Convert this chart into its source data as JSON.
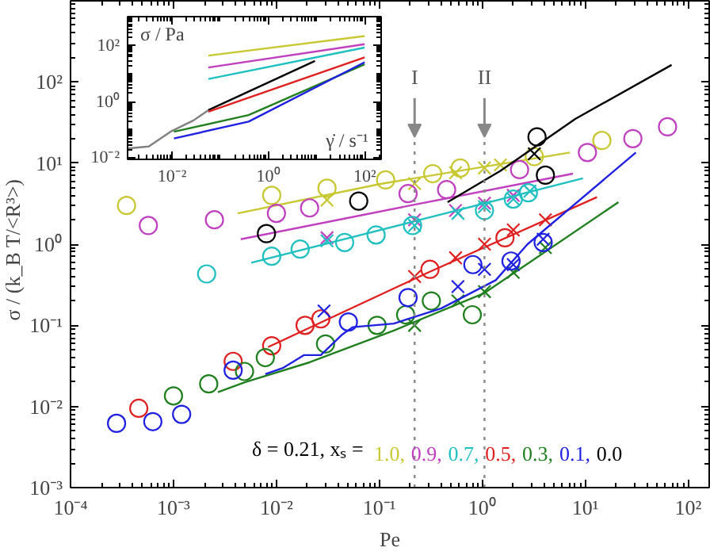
{
  "chart_data": [
    {
      "type": "scatter",
      "xlabel": "Pe",
      "ylabel": "σ / (k_B T/<R³>)",
      "log": "xy",
      "grid": false,
      "legend": "bottom right",
      "legend_title": "δ = 0.21, xₛ =",
      "xlim": [
        0.0001,
        160
      ],
      "ylim": [
        0.001,
        1000
      ],
      "xticks": [
        {
          "value": 0.0001,
          "label": "10⁻⁴"
        },
        {
          "value": 0.001,
          "label": "10⁻³"
        },
        {
          "value": 0.01,
          "label": "10⁻²"
        },
        {
          "value": 0.1,
          "label": "10⁻¹"
        },
        {
          "value": 1,
          "label": "10⁰"
        },
        {
          "value": 10,
          "label": "10¹"
        },
        {
          "value": 100,
          "label": "10²"
        }
      ],
      "yticks": [
        {
          "value": 0.001,
          "label": "10⁻³"
        },
        {
          "value": 0.01,
          "label": "10⁻²"
        },
        {
          "value": 0.1,
          "label": "10⁻¹"
        },
        {
          "value": 1,
          "label": "10⁰"
        },
        {
          "value": 10,
          "label": "10¹"
        },
        {
          "value": 100,
          "label": "10²"
        }
      ],
      "ref_lines": [
        {
          "axis": "x",
          "value": 0.22,
          "label": "I",
          "color": "#888888",
          "line_style": "dotted"
        },
        {
          "axis": "x",
          "value": 1.05,
          "label": "II",
          "color": "#888888",
          "line_style": "dotted"
        }
      ],
      "series": [
        {
          "name": "1.0,",
          "color": "#c8c832",
          "type": "scatter",
          "marker": "circle",
          "x": [
            0.00035,
            0.009,
            0.031,
            0.115,
            0.33,
            0.61,
            3.2,
            14.5
          ],
          "values": [
            3.0,
            4.0,
            4.9,
            6.2,
            7.4,
            8.7,
            12,
            19
          ]
        },
        {
          "color": "#c8c832",
          "type": "scatter",
          "marker": "cross",
          "x": [
            0.031,
            0.22,
            0.55,
            1.05,
            1.5
          ],
          "values": [
            3.5,
            5.6,
            7.6,
            8.7,
            9.5
          ]
        },
        {
          "color": "#c8c832",
          "type": "line",
          "x": [
            0.0042,
            0.1,
            7.1
          ],
          "values": [
            2.4,
            5.5,
            13.5
          ]
        },
        {
          "name": "0.9,",
          "color": "#c040c0",
          "type": "scatter",
          "marker": "circle",
          "x": [
            0.00057,
            0.0025,
            0.01,
            0.021,
            0.19,
            0.45,
            2.3,
            10.5,
            29,
            63
          ],
          "values": [
            1.7,
            2.0,
            2.4,
            2.8,
            4.2,
            4.7,
            8.3,
            13.5,
            20,
            28
          ]
        },
        {
          "color": "#c040c0",
          "type": "scatter",
          "marker": "cross",
          "x": [
            0.031,
            0.22,
            0.55,
            1.05,
            2.0
          ],
          "values": [
            1.2,
            2.0,
            2.6,
            3.2,
            4.0
          ]
        },
        {
          "color": "#c040c0",
          "type": "line",
          "x": [
            0.0045,
            0.2,
            7.6
          ],
          "values": [
            1.15,
            3.0,
            7.4
          ]
        },
        {
          "name": "0.7,",
          "color": "#20c0c0",
          "type": "scatter",
          "marker": "circle",
          "x": [
            0.0021,
            0.009,
            0.017,
            0.046,
            0.093,
            0.21,
            1.05,
            2.0,
            2.8
          ],
          "values": [
            0.43,
            0.71,
            0.87,
            1.05,
            1.3,
            1.7,
            2.6,
            3.6,
            4.3
          ]
        },
        {
          "color": "#20c0c0",
          "type": "scatter",
          "marker": "cross",
          "x": [
            0.031,
            0.22,
            0.58,
            1.05,
            2.0,
            2.9
          ],
          "values": [
            1.1,
            1.7,
            2.4,
            2.9,
            3.6,
            4.5
          ]
        },
        {
          "color": "#20c0c0",
          "type": "line",
          "x": [
            0.0057,
            0.25,
            9.5
          ],
          "values": [
            0.59,
            2.0,
            6.5
          ]
        },
        {
          "name": "0.5,",
          "color": "#e02020",
          "type": "scatter",
          "marker": "circle",
          "x": [
            0.00046,
            0.0038,
            0.009,
            0.019,
            0.027,
            0.31,
            1.66
          ],
          "values": [
            0.0095,
            0.036,
            0.056,
            0.1,
            0.12,
            0.49,
            1.2
          ]
        },
        {
          "color": "#e02020",
          "type": "scatter",
          "marker": "cross",
          "x": [
            0.22,
            0.55,
            1.05,
            2.0,
            4.1
          ],
          "values": [
            0.4,
            0.68,
            1.0,
            1.5,
            2.0
          ]
        },
        {
          "color": "#e02020",
          "type": "line",
          "x": [
            0.0083,
            0.3,
            13
          ],
          "values": [
            0.054,
            0.45,
            3.8
          ]
        },
        {
          "name": "0.3,",
          "color": "#208020",
          "type": "scatter",
          "marker": "circle",
          "x": [
            0.001,
            0.0022,
            0.0049,
            0.0078,
            0.03,
            0.095,
            0.18,
            0.32,
            0.8
          ],
          "values": [
            0.0135,
            0.019,
            0.027,
            0.04,
            0.059,
            0.1,
            0.135,
            0.2,
            0.135
          ]
        },
        {
          "color": "#208020",
          "type": "scatter",
          "marker": "cross",
          "x": [
            0.22,
            0.58,
            1.05,
            2.0,
            4.1
          ],
          "values": [
            0.1,
            0.2,
            0.26,
            0.45,
            0.91
          ]
        },
        {
          "color": "#208020",
          "type": "line",
          "x": [
            0.0027,
            0.005,
            0.021,
            0.14,
            1.05,
            21
          ],
          "values": [
            0.015,
            0.02,
            0.035,
            0.087,
            0.25,
            3.3
          ]
        },
        {
          "name": "0.1,",
          "color": "#2020e0",
          "type": "scatter",
          "marker": "circle",
          "x": [
            0.00028,
            0.00063,
            0.0012,
            0.0038,
            0.05,
            0.19,
            0.81,
            1.9,
            3.9
          ],
          "values": [
            0.0062,
            0.0065,
            0.008,
            0.028,
            0.11,
            0.22,
            0.56,
            0.62,
            1.05
          ]
        },
        {
          "color": "#2020e0",
          "type": "scatter",
          "marker": "cross",
          "x": [
            0.029,
            0.58,
            1.05,
            2.0,
            3.9
          ],
          "values": [
            0.15,
            0.3,
            0.49,
            0.56,
            1.15
          ]
        },
        {
          "color": "#2020e0",
          "type": "line",
          "x": [
            0.0078,
            0.0117,
            0.0186,
            0.027,
            0.043,
            0.055,
            0.138,
            0.4,
            1.35,
            2.75,
            31
          ],
          "values": [
            0.025,
            0.03,
            0.043,
            0.043,
            0.076,
            0.095,
            0.105,
            0.162,
            0.36,
            1.0,
            13.5
          ]
        },
        {
          "name": "0.0",
          "color": "#000000",
          "type": "scatter",
          "marker": "circle",
          "x": [
            0.008,
            0.063,
            3.4,
            4.1
          ],
          "values": [
            1.35,
            3.4,
            21,
            7.1
          ]
        },
        {
          "color": "#000000",
          "type": "scatter",
          "marker": "cross",
          "x": [
            3.2
          ],
          "values": [
            13
          ]
        },
        {
          "color": "#000000",
          "type": "line",
          "x": [
            0.46,
            1.5,
            8,
            69
          ],
          "values": [
            3.3,
            8,
            35,
            162
          ]
        }
      ]
    },
    {
      "type": "line",
      "xlabel": "γ̇ / s⁻¹",
      "ylabel": "σ / Pa",
      "log": "xy",
      "grid": false,
      "xlim": [
        0.0012,
        220
      ],
      "ylim": [
        0.009,
        1100
      ],
      "xticks": [
        {
          "value": 0.01,
          "label": "10⁻²"
        },
        {
          "value": 1,
          "label": "10⁰"
        },
        {
          "value": 100,
          "label": "10²"
        }
      ],
      "yticks": [
        {
          "value": 0.01,
          "label": "10⁻²"
        },
        {
          "value": 1,
          "label": "10⁰"
        },
        {
          "value": 100,
          "label": "10²"
        }
      ],
      "series": [
        {
          "color": "#c8c832",
          "x": [
            0.057,
            100
          ],
          "values": [
            45,
            224
          ]
        },
        {
          "color": "#c040c0",
          "x": [
            0.057,
            100
          ],
          "values": [
            17,
            115
          ]
        },
        {
          "color": "#20c0c0",
          "x": [
            0.057,
            100
          ],
          "values": [
            6.6,
            87
          ]
        },
        {
          "color": "#808080",
          "x": [
            0.0012,
            0.0033,
            0.0093,
            0.028,
            0.057
          ],
          "values": [
            0.022,
            0.026,
            0.087,
            0.22,
            0.51
          ]
        },
        {
          "color": "#000000",
          "x": [
            0.057,
            9.3
          ],
          "values": [
            0.51,
            29
          ]
        },
        {
          "color": "#e02020",
          "x": [
            0.057,
            100
          ],
          "values": [
            0.45,
            39
          ]
        },
        {
          "color": "#208020",
          "x": [
            0.011,
            0.39,
            100
          ],
          "values": [
            0.087,
            0.34,
            22
          ]
        },
        {
          "color": "#2020e0",
          "x": [
            0.011,
            0.39,
            100
          ],
          "values": [
            0.05,
            0.2,
            26
          ]
        }
      ]
    }
  ]
}
